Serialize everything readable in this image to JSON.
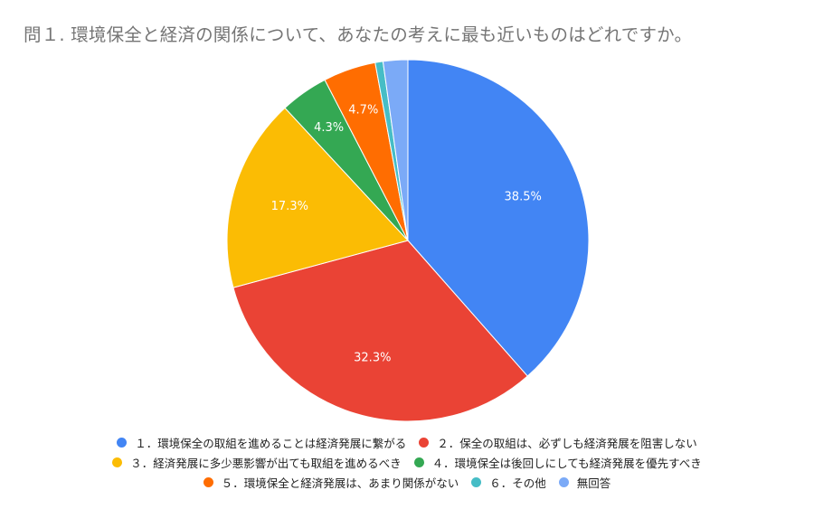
{
  "chart_data": {
    "type": "pie",
    "title": "問１. 環境保全と経済の関係について、あなたの考えに最も近いものはどれですか。",
    "slices": [
      {
        "label": "１．環境保全の取組を進めることは経済発展に繋がる",
        "value": 38.5,
        "value_label": "38.5%",
        "color": "#4285F4"
      },
      {
        "label": "２．保全の取組は、必ずしも経済発展を阻害しない",
        "value": 32.3,
        "value_label": "32.3%",
        "color": "#EA4335"
      },
      {
        "label": "３．経済発展に多少悪影響が出ても取組を進めるべき",
        "value": 17.3,
        "value_label": "17.3%",
        "color": "#FBBC04"
      },
      {
        "label": "４．環境保全は後回しにしても経済発展を優先すべき",
        "value": 4.3,
        "value_label": "4.3%",
        "color": "#34A853"
      },
      {
        "label": "５．環境保全と経済発展は、あまり関係がない",
        "value": 4.7,
        "value_label": "4.7%",
        "color": "#FF6D01"
      },
      {
        "label": "６．その他",
        "value": 0.7,
        "value_label": "",
        "color": "#46BDC6"
      },
      {
        "label": "無回答",
        "value": 2.2,
        "value_label": "",
        "color": "#7BAAF7"
      }
    ],
    "start_angle_deg": 0,
    "direction": "clockwise",
    "legend_position": "bottom",
    "legend_rows": [
      [
        0,
        1
      ],
      [
        2,
        3
      ],
      [
        4,
        5,
        6
      ]
    ]
  }
}
